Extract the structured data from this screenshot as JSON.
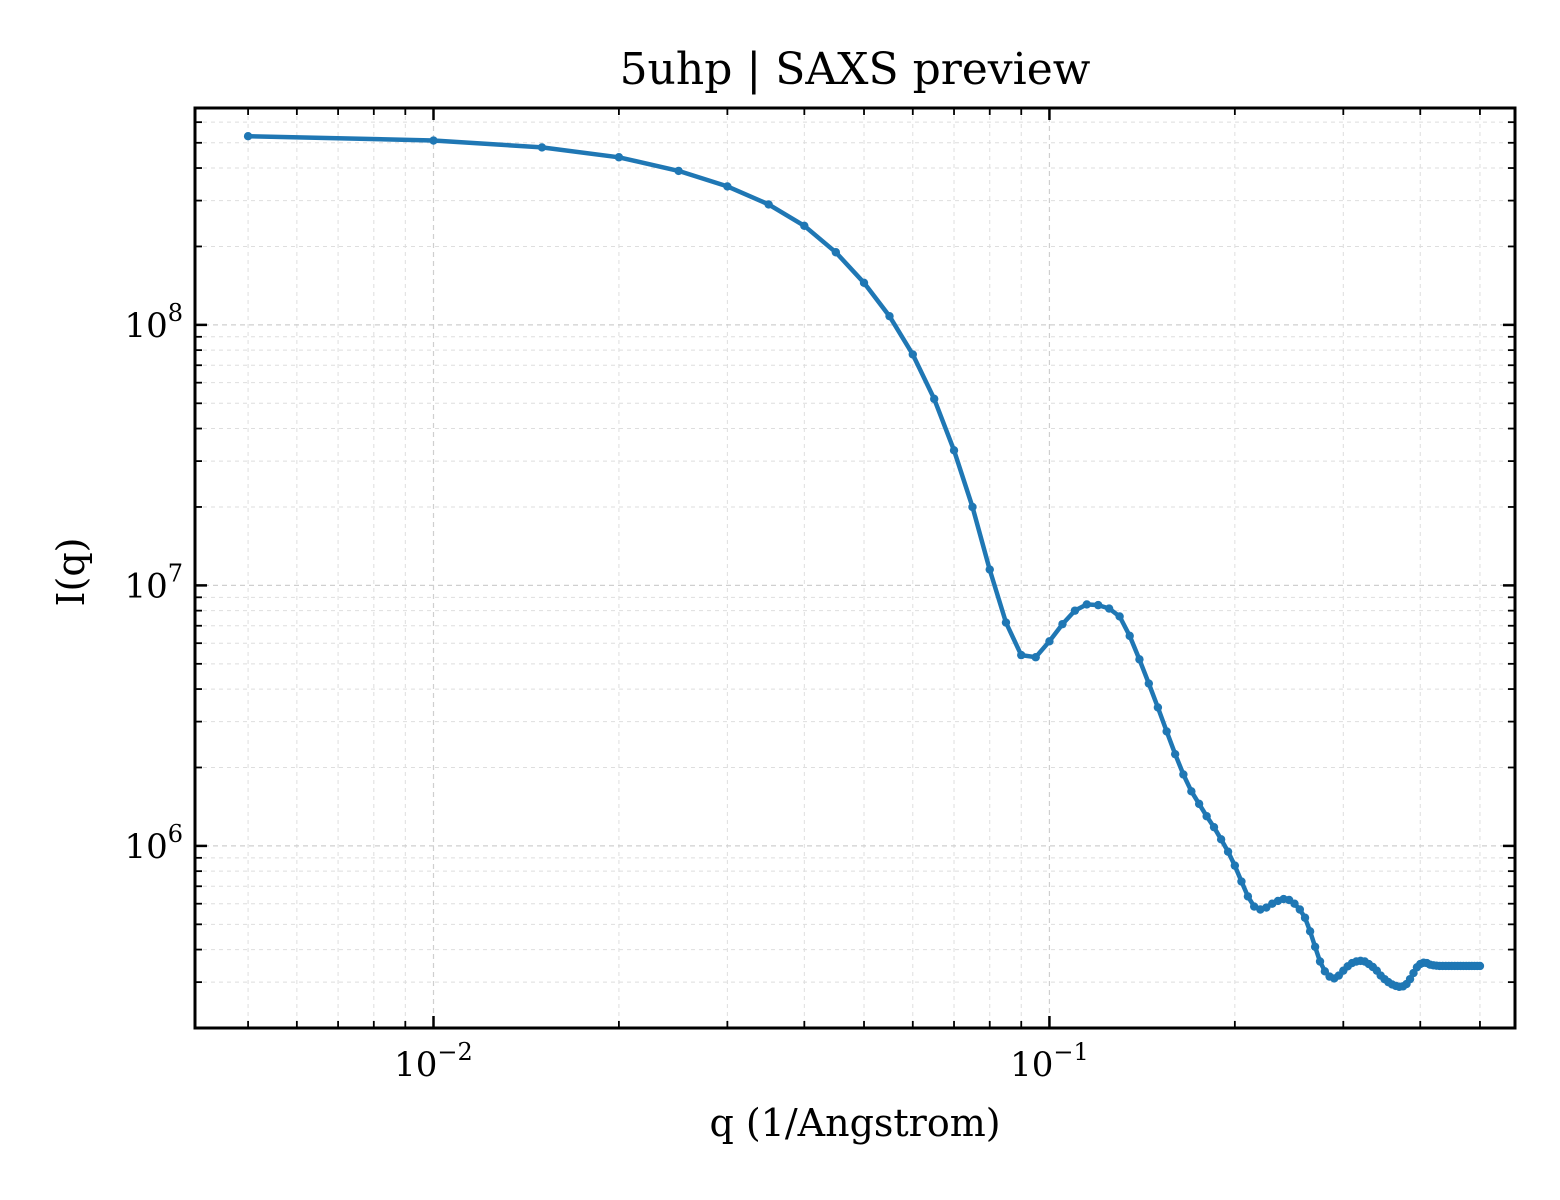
{
  "chart_data": {
    "type": "line",
    "title": "5uhp | SAXS preview",
    "xlabel": "q (1/Angstrom)",
    "ylabel": "I(q)",
    "xscale": "log",
    "yscale": "log",
    "xlim": [
      0.0041,
      0.57
    ],
    "ylim": [
      200000,
      680000000
    ],
    "grid": true,
    "legend": "none",
    "x_ticks": [
      {
        "value": 0.01,
        "base": "10",
        "exp": "−2"
      },
      {
        "value": 0.1,
        "base": "10",
        "exp": "−1"
      }
    ],
    "y_ticks": [
      {
        "value": 1000000,
        "base": "10",
        "exp": "6"
      },
      {
        "value": 10000000,
        "base": "10",
        "exp": "7"
      },
      {
        "value": 100000000,
        "base": "10",
        "exp": "8"
      }
    ],
    "series_color": "#1f77b4",
    "series": [
      {
        "x": [
          0.005,
          0.01,
          0.015,
          0.02,
          0.025,
          0.03,
          0.035,
          0.04,
          0.045,
          0.05,
          0.055,
          0.06,
          0.065,
          0.07,
          0.075,
          0.08,
          0.085,
          0.09,
          0.095,
          0.1,
          0.105,
          0.11,
          0.115,
          0.12,
          0.125,
          0.13,
          0.135,
          0.14,
          0.145,
          0.15,
          0.155,
          0.16,
          0.165,
          0.17,
          0.175,
          0.18,
          0.185,
          0.19,
          0.195,
          0.2,
          0.205,
          0.21,
          0.215,
          0.22,
          0.225,
          0.23,
          0.235,
          0.24,
          0.245,
          0.25,
          0.255,
          0.26,
          0.265,
          0.27,
          0.275,
          0.28,
          0.285,
          0.29,
          0.295,
          0.3,
          0.305,
          0.31,
          0.315,
          0.32,
          0.325,
          0.33,
          0.335,
          0.34,
          0.345,
          0.35,
          0.355,
          0.36,
          0.365,
          0.37,
          0.375,
          0.38,
          0.385,
          0.39,
          0.395,
          0.4,
          0.405,
          0.41,
          0.415,
          0.42,
          0.425,
          0.43,
          0.435,
          0.44,
          0.445,
          0.45,
          0.455,
          0.46,
          0.465,
          0.47,
          0.475,
          0.48,
          0.485,
          0.49,
          0.495,
          0.5
        ],
        "y": [
          530000000,
          510000000,
          480000000,
          440000000,
          390000000,
          340000000,
          290000000,
          240000000,
          190000000,
          145000000,
          108000000,
          77000000,
          52000000,
          33000000,
          20000000,
          11500000,
          7200000,
          5400000,
          5300000,
          6100000,
          7100000,
          8000000,
          8450000,
          8400000,
          8150000,
          7600000,
          6400000,
          5200000,
          4200000,
          3400000,
          2750000,
          2250000,
          1880000,
          1620000,
          1450000,
          1300000,
          1180000,
          1060000,
          950000,
          840000,
          730000,
          640000,
          585000,
          570000,
          580000,
          600000,
          615000,
          625000,
          620000,
          600000,
          570000,
          530000,
          470000,
          410000,
          360000,
          330000,
          315000,
          310000,
          318000,
          332000,
          345000,
          355000,
          360000,
          362000,
          360000,
          352000,
          343000,
          332000,
          318000,
          308000,
          300000,
          294000,
          290000,
          288000,
          289000,
          295000,
          308000,
          325000,
          342000,
          352000,
          356000,
          355000,
          350000,
          348000,
          347000,
          346000,
          346000,
          346000,
          346000,
          346000,
          346000,
          346000,
          346000,
          346000,
          346000,
          346000,
          346000,
          346000,
          346000,
          346000
        ]
      }
    ]
  }
}
